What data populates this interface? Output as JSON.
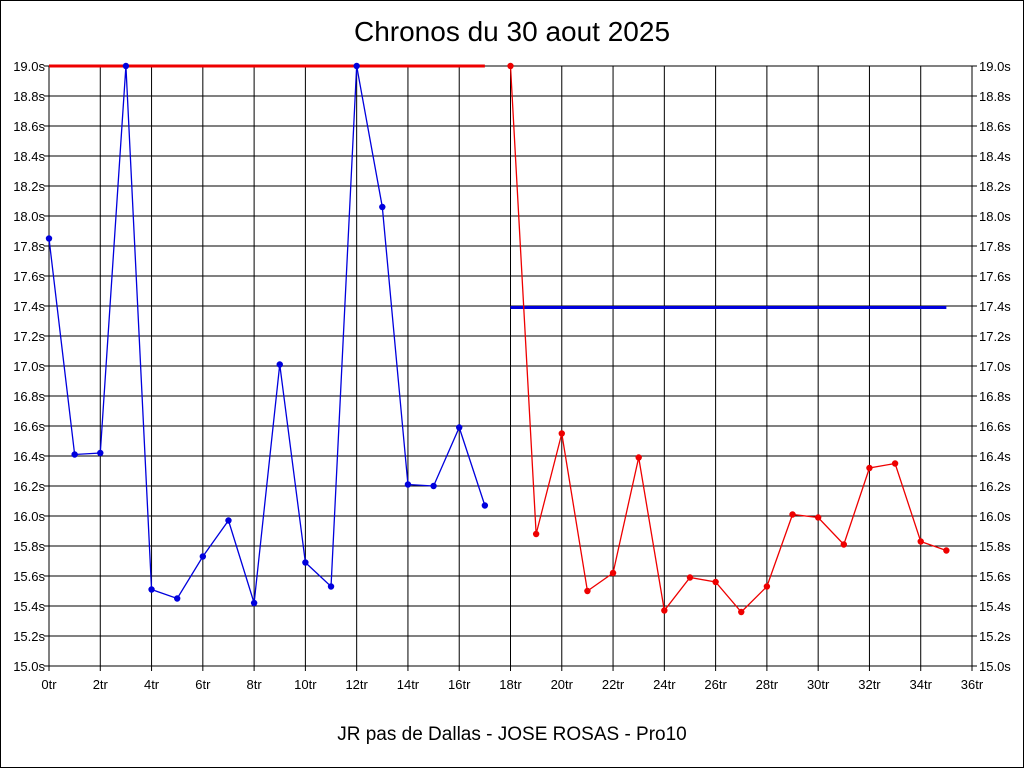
{
  "chart_data": {
    "type": "line",
    "title": "Chronos du 30 aout 2025",
    "subtitle": "JR pas de Dallas - JOSE ROSAS - Pro10",
    "xlabel": "",
    "ylabel": "",
    "xlim": [
      0,
      36
    ],
    "ylim": [
      15.0,
      19.0
    ],
    "x_ticks": [
      "0tr",
      "2tr",
      "4tr",
      "6tr",
      "8tr",
      "10tr",
      "12tr",
      "14tr",
      "16tr",
      "18tr",
      "20tr",
      "22tr",
      "24tr",
      "26tr",
      "28tr",
      "30tr",
      "32tr",
      "34tr",
      "36tr"
    ],
    "y_ticks": [
      "15.0s",
      "15.2s",
      "15.4s",
      "15.6s",
      "15.8s",
      "16.0s",
      "16.2s",
      "16.4s",
      "16.6s",
      "16.8s",
      "17.0s",
      "17.2s",
      "17.4s",
      "17.6s",
      "17.8s",
      "18.0s",
      "18.2s",
      "18.4s",
      "18.6s",
      "18.8s",
      "19.0s"
    ],
    "grid": true,
    "series": [
      {
        "color": "#0000dd",
        "x": [
          0,
          1,
          2,
          3,
          4,
          5,
          6,
          7,
          8,
          9,
          10,
          11,
          12,
          13,
          14,
          15,
          16,
          17
        ],
        "values": [
          17.85,
          16.41,
          16.42,
          19.0,
          15.51,
          15.45,
          15.73,
          15.97,
          15.42,
          17.01,
          15.69,
          15.53,
          19.0,
          18.06,
          16.21,
          16.2,
          16.59,
          16.07
        ]
      },
      {
        "color": "#ee0000",
        "x": [
          18,
          19,
          20,
          21,
          22,
          23,
          24,
          25,
          26,
          27,
          28,
          29,
          30,
          31,
          32,
          33,
          34,
          35
        ],
        "values": [
          19.0,
          15.88,
          16.55,
          15.5,
          15.62,
          16.39,
          15.37,
          15.59,
          15.56,
          15.36,
          15.53,
          16.01,
          15.99,
          15.81,
          16.32,
          16.35,
          15.83,
          15.77
        ]
      }
    ],
    "reference_lines": [
      {
        "color": "#ee0000",
        "x": [
          0,
          17
        ],
        "value": 19.0
      },
      {
        "color": "#0000dd",
        "x": [
          18,
          35
        ],
        "value": 17.39
      }
    ]
  }
}
